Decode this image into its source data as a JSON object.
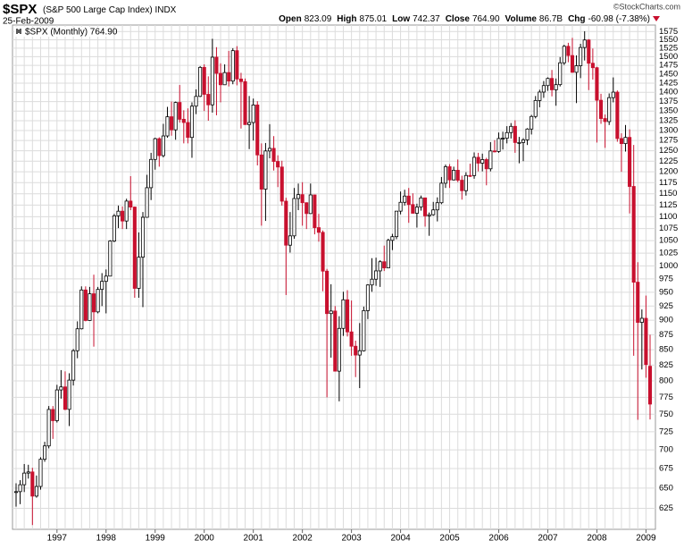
{
  "header": {
    "symbol": "$SPX",
    "name": "(S&P 500 Large Cap Index)",
    "exchange": "INDX",
    "date": "25-Feb-2009",
    "copyright": "©StockCharts.com",
    "quote": [
      {
        "label": "Open",
        "value": "823.09"
      },
      {
        "label": "High",
        "value": "875.01"
      },
      {
        "label": "Low",
        "value": "742.37"
      },
      {
        "label": "Close",
        "value": "764.90"
      },
      {
        "label": "Volume",
        "value": "86.7B"
      },
      {
        "label": "Chg",
        "value": "-60.98 (-7.38%)"
      }
    ]
  },
  "chart_data": {
    "type": "candlestick",
    "legend": "$SPX (Monthly) 764.90",
    "log_scale": true,
    "grid": true,
    "up_color": "#000000",
    "down_color": "#c8102e",
    "ylim": [
      600,
      1595
    ],
    "yticks": [
      625,
      650,
      675,
      700,
      725,
      750,
      775,
      800,
      825,
      850,
      875,
      900,
      925,
      950,
      975,
      1000,
      1025,
      1050,
      1075,
      1100,
      1125,
      1150,
      1175,
      1200,
      1225,
      1250,
      1275,
      1300,
      1325,
      1350,
      1375,
      1400,
      1425,
      1450,
      1475,
      1500,
      1525,
      1550,
      1575
    ],
    "categories": [
      null,
      null,
      null,
      null,
      null,
      null,
      null,
      null,
      null,
      null,
      "1997",
      null,
      null,
      null,
      null,
      null,
      null,
      null,
      null,
      null,
      null,
      null,
      "1998",
      null,
      null,
      null,
      null,
      null,
      null,
      null,
      null,
      null,
      null,
      null,
      "1999",
      null,
      null,
      null,
      null,
      null,
      null,
      null,
      null,
      null,
      null,
      null,
      "2000",
      null,
      null,
      null,
      null,
      null,
      null,
      null,
      null,
      null,
      null,
      null,
      "2001",
      null,
      null,
      null,
      null,
      null,
      null,
      null,
      null,
      null,
      null,
      null,
      "2002",
      null,
      null,
      null,
      null,
      null,
      null,
      null,
      null,
      null,
      null,
      null,
      "2003",
      null,
      null,
      null,
      null,
      null,
      null,
      null,
      null,
      null,
      null,
      null,
      "2004",
      null,
      null,
      null,
      null,
      null,
      null,
      null,
      null,
      null,
      null,
      null,
      "2005",
      null,
      null,
      null,
      null,
      null,
      null,
      null,
      null,
      null,
      null,
      null,
      "2006",
      null,
      null,
      null,
      null,
      null,
      null,
      null,
      null,
      null,
      null,
      null,
      "2007",
      null,
      null,
      null,
      null,
      null,
      null,
      null,
      null,
      null,
      null,
      null,
      "2008",
      null,
      null,
      null,
      null,
      null,
      null,
      null,
      null,
      null,
      null,
      null,
      "2009",
      null
    ],
    "open": [
      645,
      645.5,
      654.2,
      669.1,
      670.6,
      639.9,
      652,
      687.3,
      705.3,
      757,
      740.7,
      786.2,
      790.8,
      757.1,
      801.3,
      848.3,
      885.1,
      954.3,
      899.5,
      947.3,
      914.6,
      955.4,
      970.4,
      980.3,
      1049.3,
      1101.8,
      1111.8,
      1090.8,
      1133.8,
      1120.7,
      957.3,
      1017,
      1098.7,
      1163.6,
      1229.2,
      1279.6,
      1238.3,
      1286.4,
      1335.2,
      1301.8,
      1372.7,
      1328.7,
      1320.4,
      1282.7,
      1362.9,
      1389,
      1469.3,
      1394.5,
      1366.4,
      1498.6,
      1452.4,
      1420.6,
      1454.6,
      1430.8,
      1517.7,
      1436.5,
      1429.4,
      1315,
      1320.3,
      1366,
      1239.9,
      1160.3,
      1249.5,
      1255.8,
      1224.4,
      1211.2,
      1133.6,
      1040.9,
      1059.8,
      1139.5,
      1148.1,
      1130.2,
      1106.7,
      1147.4,
      1076.9,
      1067.1,
      989.8,
      911.6,
      916.1,
      815.3,
      885.8,
      936.3,
      879.8,
      855.7,
      841.2,
      848.2,
      916.9,
      963.6,
      974.5,
      990.3,
      1008,
      996,
      1050.7,
      1058.2,
      1111.9,
      1131.1,
      1144.9,
      1126.2,
      1107.3,
      1120.7,
      1140.8,
      1101.7,
      1104.2,
      1114.6,
      1130.2,
      1173.8,
      1211.9,
      1181.3,
      1203.6,
      1180.6,
      1156.9,
      1191.5,
      1191.3,
      1234.2,
      1220.3,
      1228.8,
      1207,
      1249.5,
      1248.3,
      1280.1,
      1280.7,
      1294.8,
      1310.6,
      1270.1,
      1270.2,
      1276.7,
      1303.8,
      1335.9,
      1377.9,
      1400.6,
      1418.3,
      1438.2,
      1406.8,
      1420.9,
      1482.4,
      1530.6,
      1503.4,
      1455.3,
      1474,
      1527,
      1549.4,
      1481.1,
      1468.4,
      1378.6,
      1330.6,
      1322.7,
      1385.6,
      1400.4,
      1280,
      1267.4,
      1282.8,
      1166.4,
      968.8,
      896.2,
      903.3,
      823.09
    ],
    "high": [
      656,
      660,
      681,
      680,
      676,
      666,
      690,
      711,
      762,
      762,
      794,
      817,
      815,
      812,
      851,
      898,
      961,
      961,
      960,
      983,
      960,
      986,
      993,
      1051,
      1106,
      1124,
      1122,
      1139,
      1190,
      1122,
      1067,
      1110,
      1193,
      1245,
      1282,
      1283,
      1317,
      1361,
      1375,
      1375,
      1420,
      1352,
      1357,
      1373,
      1408,
      1473,
      1478,
      1444,
      1553,
      1528,
      1481,
      1478,
      1517,
      1525,
      1531,
      1454,
      1438,
      1390,
      1383,
      1376,
      1268,
      1269,
      1316,
      1286,
      1239,
      1226,
      1141,
      1110,
      1163,
      1173,
      1176,
      1131,
      1173,
      1148,
      1106,
      1071,
      994,
      965,
      925,
      907,
      951,
      954,
      935,
      865,
      895,
      924,
      965,
      1015,
      1016,
      1011,
      1040,
      1054,
      1064,
      1112,
      1155,
      1159,
      1163,
      1151,
      1128,
      1146,
      1141,
      1109,
      1132,
      1142,
      1188,
      1217,
      1218,
      1212,
      1229,
      1191,
      1199,
      1219,
      1246,
      1245,
      1243,
      1233,
      1271,
      1276,
      1295,
      1297,
      1311,
      1319,
      1326,
      1284,
      1281,
      1306,
      1340,
      1390,
      1407,
      1431,
      1441,
      1462,
      1438,
      1499,
      1535,
      1541,
      1556,
      1504,
      1538,
      1576,
      1552,
      1524,
      1471,
      1396,
      1341,
      1397,
      1441,
      1405,
      1293,
      1314,
      1303,
      1264,
      1007,
      919,
      944,
      875.01
    ],
    "low": [
      627,
      630,
      645,
      662,
      605,
      638,
      648,
      684,
      702,
      715,
      738,
      773,
      756,
      733,
      793,
      836,
      884,
      898,
      899,
      855,
      912,
      925,
      912,
      980,
      1047,
      1076,
      1074,
      1074,
      1114,
      940,
      940,
      923,
      1098,
      1136,
      1205,
      1212,
      1234,
      1282,
      1287,
      1277,
      1320,
      1268,
      1268,
      1233,
      1342,
      1387,
      1350,
      1325,
      1346,
      1339,
      1373,
      1420,
      1416,
      1422,
      1419,
      1305,
      1316,
      1254,
      1275,
      1215,
      1081,
      1091,
      1232,
      1203,
      1165,
      1124,
      945,
      1026,
      1054,
      1114,
      1081,
      1074,
      1106,
      1063,
      1048,
      952,
      775,
      837,
      815,
      769,
      873,
      872,
      840,
      806,
      789,
      847,
      902,
      951,
      962,
      960,
      990,
      996,
      1031,
      1053,
      1105,
      1124,
      1087,
      1107,
      1077,
      1113,
      1079,
      1060,
      1102,
      1090,
      1127,
      1163,
      1163,
      1180,
      1176,
      1137,
      1146,
      1188,
      1184,
      1201,
      1201,
      1169,
      1201,
      1246,
      1245,
      1253,
      1268,
      1280,
      1245,
      1220,
      1225,
      1264,
      1290,
      1331,
      1360,
      1385,
      1404,
      1389,
      1364,
      1416,
      1476,
      1484,
      1454,
      1371,
      1439,
      1489,
      1406,
      1435,
      1270,
      1317,
      1257,
      1314,
      1373,
      1272,
      1200,
      1248,
      1107,
      840,
      742,
      818,
      805,
      742.37
    ],
    "close": [
      645.5,
      654.2,
      669.1,
      670.6,
      639.9,
      652,
      687.3,
      705.3,
      757,
      740.7,
      786.2,
      790.8,
      757.1,
      801.3,
      848.3,
      885.1,
      954.3,
      899.5,
      947.3,
      914.6,
      955.4,
      970.4,
      980.3,
      1049.3,
      1101.8,
      1111.8,
      1090.8,
      1133.8,
      1120.7,
      957.3,
      1017,
      1098.7,
      1163.6,
      1229.2,
      1279.6,
      1238.3,
      1286.4,
      1335.2,
      1301.8,
      1372.7,
      1328.7,
      1320.4,
      1282.7,
      1362.9,
      1389,
      1469.3,
      1394.5,
      1366.4,
      1498.6,
      1452.4,
      1420.6,
      1454.6,
      1430.8,
      1517.7,
      1436.5,
      1429.4,
      1315,
      1320.3,
      1366,
      1239.9,
      1160.3,
      1249.5,
      1255.8,
      1224.4,
      1211.2,
      1133.6,
      1040.9,
      1059.8,
      1139.5,
      1148.1,
      1130.2,
      1106.7,
      1147.4,
      1076.9,
      1067.1,
      989.8,
      911.6,
      916.1,
      815.3,
      885.8,
      936.3,
      879.8,
      855.7,
      841.2,
      848.2,
      916.9,
      963.6,
      974.5,
      990.3,
      1008,
      996,
      1050.7,
      1058.2,
      1111.9,
      1131.1,
      1144.9,
      1126.2,
      1107.3,
      1120.7,
      1140.8,
      1101.7,
      1104.2,
      1114.6,
      1130.2,
      1173.8,
      1211.9,
      1181.3,
      1203.6,
      1180.6,
      1156.9,
      1191.5,
      1191.3,
      1234.2,
      1220.3,
      1228.8,
      1207,
      1249.5,
      1248.3,
      1280.1,
      1280.7,
      1294.8,
      1310.6,
      1270.1,
      1270.2,
      1276.7,
      1303.8,
      1335.9,
      1377.9,
      1400.6,
      1418.3,
      1438.2,
      1406.8,
      1420.9,
      1482.4,
      1530.6,
      1503.4,
      1455.3,
      1474,
      1527,
      1549.4,
      1481.1,
      1468.4,
      1378.6,
      1330.6,
      1322.7,
      1385.6,
      1400.4,
      1280,
      1267.4,
      1282.8,
      1166.4,
      968.8,
      896.2,
      903.3,
      825.9,
      764.9
    ]
  }
}
